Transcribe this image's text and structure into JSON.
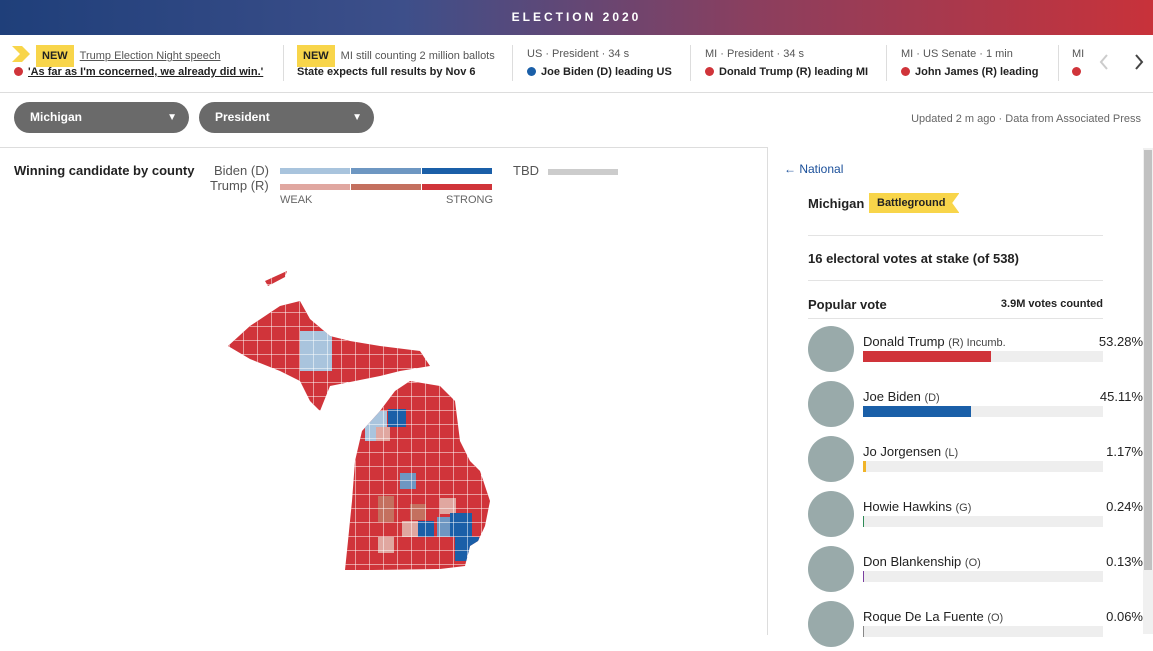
{
  "header": {
    "title": "ELECTION 2020"
  },
  "ticker": [
    {
      "badge": "NEW",
      "headline": "Trump Election Night speech",
      "detail": "'As far as I'm concerned, we already did win.'"
    },
    {
      "badge": "NEW",
      "headline": "MI still counting 2 million ballots",
      "detail": "State expects full results by Nov 6"
    },
    {
      "headline": "US · President · 34 s",
      "detail": "Joe Biden (D) leading US"
    },
    {
      "headline": "MI · President · 34 s",
      "detail": "Donald Trump (R) leading MI"
    },
    {
      "headline": "MI · US Senate · 1 min",
      "detail": "John James (R) leading"
    },
    {
      "headline": "MI"
    }
  ],
  "filters": {
    "state": "Michigan",
    "race": "President",
    "updated": "Updated 2 m ago",
    "source": "Data from Associated Press"
  },
  "map": {
    "title": "Winning candidate by county",
    "legend": {
      "biden": "Biden (D)",
      "trump": "Trump (R)",
      "weak": "WEAK",
      "strong": "STRONG",
      "tbd": "TBD"
    }
  },
  "sidebar": {
    "back": "National",
    "state": "Michigan",
    "tag": "Battleground",
    "electoral": "16 electoral votes at stake (of 538)",
    "popular_title": "Popular vote",
    "counted": "3.9M votes counted",
    "candidates": [
      {
        "name": "Donald Trump",
        "party": "(R) Incumb.",
        "pct": 53.28,
        "pct_label": "53.28%",
        "color": "#d0343a"
      },
      {
        "name": "Joe Biden",
        "party": "(D)",
        "pct": 45.11,
        "pct_label": "45.11%",
        "color": "#1a5fa8"
      },
      {
        "name": "Jo Jorgensen",
        "party": "(L)",
        "pct": 1.17,
        "pct_label": "1.17%",
        "color": "#f0b429"
      },
      {
        "name": "Howie Hawkins",
        "party": "(G)",
        "pct": 0.24,
        "pct_label": "0.24%",
        "color": "#2e8b57"
      },
      {
        "name": "Don Blankenship",
        "party": "(O)",
        "pct": 0.13,
        "pct_label": "0.13%",
        "color": "#7a3fa0"
      },
      {
        "name": "Roque De La Fuente",
        "party": "(O)",
        "pct": 0.06,
        "pct_label": "0.06%",
        "color": "#888888"
      }
    ]
  }
}
